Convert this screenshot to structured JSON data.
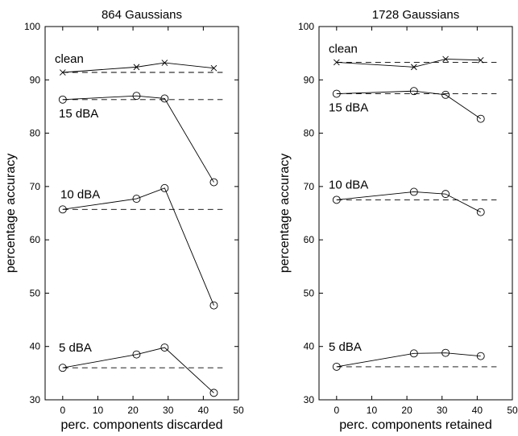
{
  "chart_data": [
    {
      "type": "line",
      "title": "864 Gaussians",
      "xlabel": "perc. components discarded",
      "ylabel": "percentage accuracy",
      "xlim": [
        -5,
        50
      ],
      "ylim": [
        30,
        100
      ],
      "xticks": [
        0,
        10,
        20,
        30,
        40,
        50
      ],
      "yticks": [
        30,
        40,
        50,
        60,
        70,
        80,
        90,
        100
      ],
      "grid": false,
      "series": [
        {
          "name": "clean",
          "marker": "x",
          "x": [
            0,
            21,
            29,
            43
          ],
          "y": [
            91.4,
            92.4,
            93.2,
            92.2
          ],
          "baseline": 91.4
        },
        {
          "name": "15 dBA",
          "marker": "o",
          "x": [
            0,
            21,
            29,
            43
          ],
          "y": [
            86.3,
            87.0,
            86.5,
            70.8
          ],
          "baseline": 86.3
        },
        {
          "name": "10 dBA",
          "marker": "o",
          "x": [
            0,
            21,
            29,
            43
          ],
          "y": [
            65.7,
            67.7,
            69.7,
            47.7
          ],
          "baseline": 65.7
        },
        {
          "name": "5 dBA",
          "marker": "o",
          "x": [
            0,
            21,
            29,
            43
          ],
          "y": [
            36.0,
            38.5,
            39.8,
            31.3
          ],
          "baseline": 36.0
        }
      ]
    },
    {
      "type": "line",
      "title": "1728 Gaussians",
      "xlabel": "perc. components retained",
      "ylabel": "percentage accuracy",
      "xlim": [
        -5,
        50
      ],
      "ylim": [
        30,
        100
      ],
      "xticks": [
        0,
        10,
        20,
        30,
        40,
        50
      ],
      "yticks": [
        30,
        40,
        50,
        60,
        70,
        80,
        90,
        100
      ],
      "grid": false,
      "series": [
        {
          "name": "clean",
          "marker": "x",
          "x": [
            0,
            22,
            31,
            41
          ],
          "y": [
            93.3,
            92.4,
            93.9,
            93.7
          ],
          "baseline": 93.3
        },
        {
          "name": "15 dBA",
          "marker": "o",
          "x": [
            0,
            22,
            31,
            41
          ],
          "y": [
            87.4,
            87.9,
            87.2,
            82.7
          ],
          "baseline": 87.4
        },
        {
          "name": "10 dBA",
          "marker": "o",
          "x": [
            0,
            22,
            31,
            41
          ],
          "y": [
            67.5,
            69.0,
            68.6,
            65.2
          ],
          "baseline": 67.5
        },
        {
          "name": "5 dBA",
          "marker": "o",
          "x": [
            0,
            22,
            31,
            41
          ],
          "y": [
            36.2,
            38.7,
            38.8,
            38.2
          ],
          "baseline": 36.2
        }
      ]
    }
  ]
}
